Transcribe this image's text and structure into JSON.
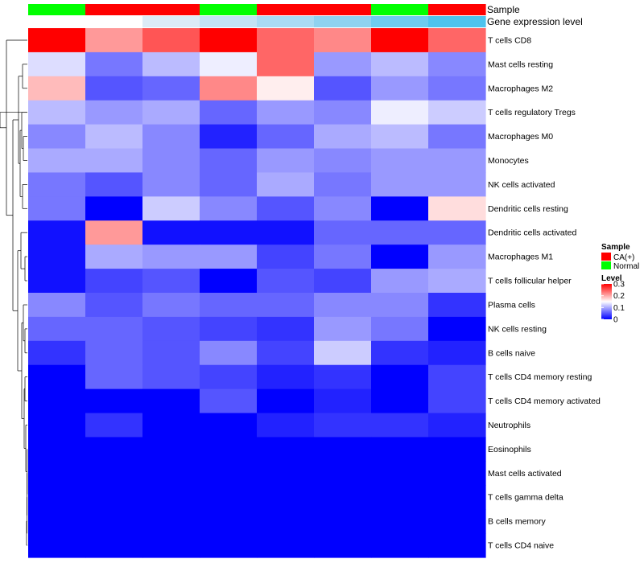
{
  "chart_data": {
    "type": "heatmap",
    "row_labels": [
      "T cells CD8",
      "Mast cells resting",
      "Macrophages M2",
      "T cells regulatory  Tregs",
      "Macrophages M0",
      "Monocytes",
      "NK cells activated",
      "Dendritic cells resting",
      "Dendritic cells activated",
      "Macrophages M1",
      "T cells follicular helper",
      "Plasma cells",
      "NK cells resting",
      "B cells naive",
      "T cells CD4 memory resting",
      "T cells CD4 memory activated",
      "Neutrophils",
      "Eosinophils",
      "Mast cells activated",
      "T cells gamma delta",
      "B cells memory",
      "T cells CD4 naive"
    ],
    "column_annotations": {
      "sample_track_label": "Sample",
      "gene_track_label": "Gene expression level",
      "sample": [
        "Normal",
        "CA(+)",
        "CA(+)",
        "Normal",
        "CA(+)",
        "CA(+)",
        "Normal",
        "CA(+)"
      ],
      "gene_expression": [
        "#ffffff",
        "#ffffff",
        "#dcebf7",
        "#c3e3f4",
        "#a9dbf3",
        "#8fd2f0",
        "#6ecbef",
        "#4ec3ee"
      ]
    },
    "values": [
      [
        0.3,
        0.21,
        0.25,
        0.3,
        0.24,
        0.22,
        0.3,
        0.24
      ],
      [
        0.13,
        0.07,
        0.11,
        0.14,
        0.24,
        0.09,
        0.11,
        0.08
      ],
      [
        0.19,
        0.05,
        0.06,
        0.22,
        0.16,
        0.05,
        0.09,
        0.07
      ],
      [
        0.11,
        0.09,
        0.1,
        0.06,
        0.09,
        0.08,
        0.14,
        0.12
      ],
      [
        0.08,
        0.11,
        0.08,
        0.02,
        0.06,
        0.1,
        0.11,
        0.07
      ],
      [
        0.1,
        0.1,
        0.08,
        0.06,
        0.09,
        0.08,
        0.09,
        0.09
      ],
      [
        0.07,
        0.05,
        0.08,
        0.06,
        0.1,
        0.07,
        0.09,
        0.09
      ],
      [
        0.07,
        0.0,
        0.12,
        0.08,
        0.05,
        0.08,
        0.0,
        0.17
      ],
      [
        0.01,
        0.21,
        0.01,
        0.01,
        0.01,
        0.06,
        0.06,
        0.06
      ],
      [
        0.01,
        0.1,
        0.09,
        0.09,
        0.04,
        0.07,
        0.0,
        0.09
      ],
      [
        0.01,
        0.04,
        0.05,
        0.0,
        0.05,
        0.04,
        0.09,
        0.1
      ],
      [
        0.08,
        0.05,
        0.07,
        0.06,
        0.06,
        0.08,
        0.08,
        0.03
      ],
      [
        0.06,
        0.06,
        0.05,
        0.04,
        0.03,
        0.09,
        0.07,
        0.0
      ],
      [
        0.03,
        0.06,
        0.05,
        0.08,
        0.04,
        0.12,
        0.03,
        0.02
      ],
      [
        0.0,
        0.06,
        0.05,
        0.04,
        0.02,
        0.03,
        0.0,
        0.04
      ],
      [
        0.0,
        0.0,
        0.0,
        0.05,
        0.0,
        0.02,
        0.0,
        0.04
      ],
      [
        0.0,
        0.03,
        0.0,
        0.0,
        0.02,
        0.03,
        0.03,
        0.02
      ],
      [
        0.0,
        0.0,
        0.0,
        0.0,
        0.0,
        0.0,
        0.0,
        0.0
      ],
      [
        0.0,
        0.0,
        0.0,
        0.0,
        0.0,
        0.0,
        0.0,
        0.0
      ],
      [
        0.0,
        0.0,
        0.0,
        0.0,
        0.0,
        0.0,
        0.0,
        0.0
      ],
      [
        0.0,
        0.0,
        0.0,
        0.0,
        0.0,
        0.0,
        0.0,
        0.0
      ],
      [
        0.0,
        0.0,
        0.0,
        0.0,
        0.0,
        0.0,
        0.0,
        0.0
      ]
    ],
    "color_scale": {
      "min": 0,
      "mid": 0.15,
      "max": 0.3,
      "low_color": "#0000ff",
      "mid_color": "#ffffff",
      "high_color": "#ff0000"
    },
    "legend": {
      "sample_title": "Sample",
      "sample_entries": [
        {
          "label": "CA(+)",
          "color": "#ff0000"
        },
        {
          "label": "Normal",
          "color": "#00ff00"
        }
      ],
      "level_title": "Level",
      "level_ticks": [
        "0.3",
        "0.2",
        "0.1",
        "0"
      ]
    },
    "dendrogram": "row clustering tree on left side"
  }
}
